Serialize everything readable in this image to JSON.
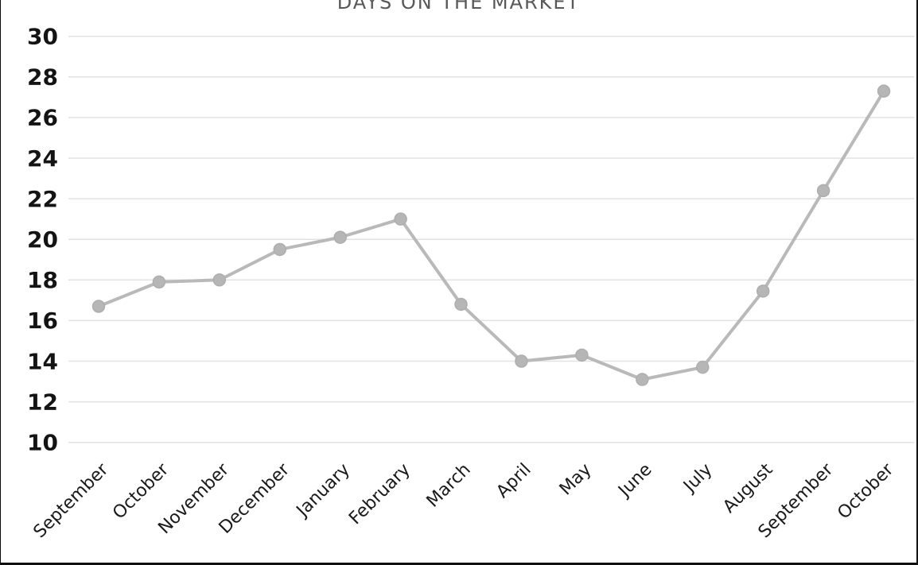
{
  "chart_data": {
    "type": "line",
    "title": "DAYS ON THE MARKET",
    "categories": [
      "September",
      "October",
      "November",
      "December",
      "January",
      "February",
      "March",
      "April",
      "May",
      "June",
      "July",
      "August",
      "September",
      "October"
    ],
    "series": [
      {
        "name": "Days on the Market",
        "values": [
          16.7,
          17.9,
          18.0,
          19.5,
          20.1,
          21.0,
          16.8,
          14.0,
          14.3,
          13.1,
          13.7,
          17.45,
          22.4,
          27.3
        ]
      }
    ],
    "xlabel": "",
    "ylabel": "",
    "ylim": [
      10,
      30
    ],
    "ytick_step": 2,
    "yticks": [
      10,
      12,
      14,
      16,
      18,
      20,
      22,
      24,
      26,
      28,
      30
    ],
    "grid": true,
    "legend_position": "none",
    "x_label_rotation_deg": -45,
    "colors": {
      "line": "#b9b9b9",
      "marker": "#b6b6b6",
      "marker_edge": "#aeaeae",
      "gridline": "#e2e2e2",
      "tick_label": "#1a1a1a",
      "title": "#595959",
      "background": "#ffffff"
    }
  }
}
